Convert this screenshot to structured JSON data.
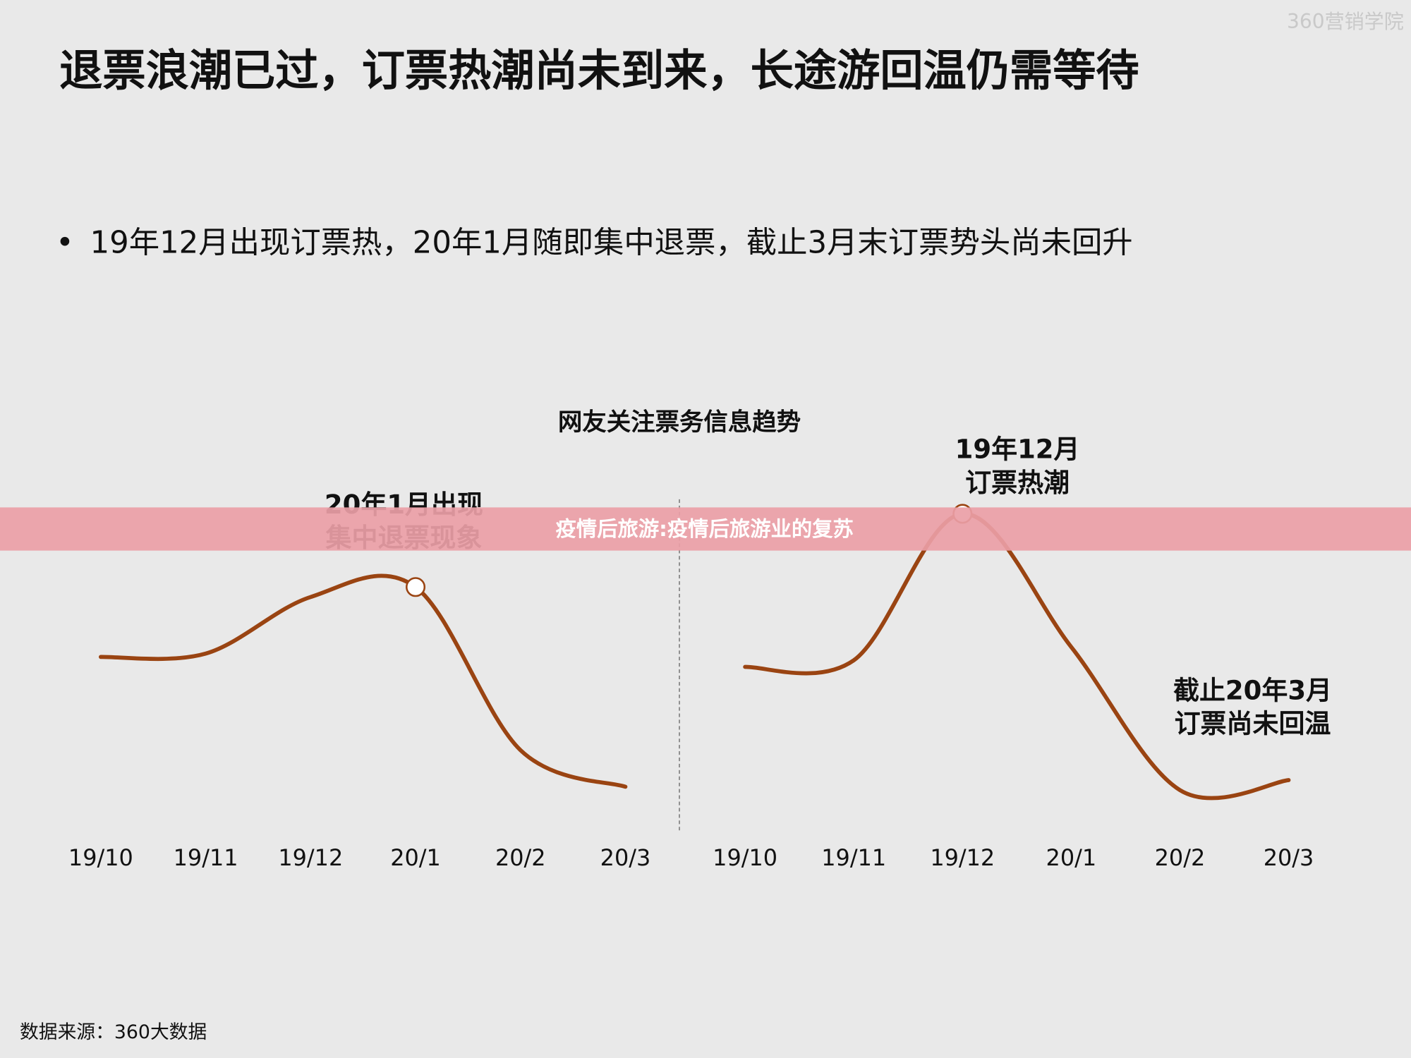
{
  "header": {
    "title": "退票浪潮已过，订票热潮尚未到来，长途游回温仍需等待",
    "bullet": "19年12月出现订票热，20年1月随即集中退票，截止3月末订票势头尚未回升"
  },
  "watermark": "360营销学院",
  "banner": "疫情后旅游:疫情后旅游业的复苏",
  "shared_title": "网友关注票务信息趋势",
  "source": "数据来源：360大数据",
  "chart_data": [
    {
      "type": "line",
      "categories": [
        "19/10",
        "19/11",
        "19/12",
        "20/1",
        "20/2",
        "20/3"
      ],
      "values": [
        54,
        55,
        72,
        75,
        26,
        15
      ],
      "color": "#9a4412",
      "ylim": [
        0,
        100
      ],
      "annotations": [
        {
          "text": [
            "20年1月出现",
            "集中退票现象"
          ],
          "at": "20/1"
        }
      ]
    },
    {
      "type": "line",
      "categories": [
        "19/10",
        "19/11",
        "19/12",
        "20/1",
        "20/2",
        "20/3"
      ],
      "values": [
        51,
        53,
        97,
        57,
        14,
        17
      ],
      "color": "#9a4412",
      "ylim": [
        0,
        100
      ],
      "annotations": [
        {
          "text": [
            "19年12月",
            "订票热潮"
          ],
          "at": "19/12"
        },
        {
          "text": [
            "截止20年3月",
            "订票尚未回温"
          ]
        }
      ]
    }
  ]
}
